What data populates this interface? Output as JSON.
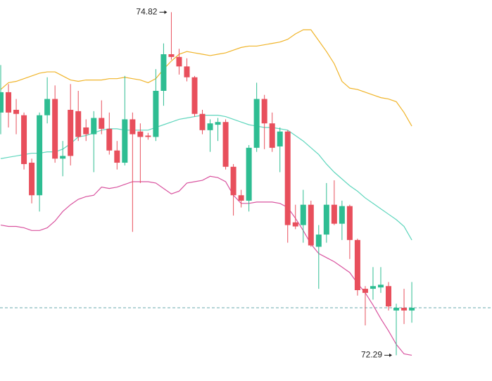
{
  "chart_data": {
    "type": "candlestick",
    "open": [
      74.08,
      74.23,
      74.1,
      74.06,
      73.71,
      73.47,
      74.06,
      74.18,
      73.74,
      74.1,
      74.09,
      73.97,
      73.92,
      74.04,
      73.96,
      73.8,
      73.71,
      74.03,
      73.94,
      73.91,
      73.9,
      74.24,
      74.51,
      74.49,
      74.42,
      74.34,
      74.07,
      73.95,
      73.99,
      74.01,
      73.68,
      73.47,
      73.43,
      73.82,
      74.18,
      74.0,
      73.83,
      73.94,
      73.27,
      73.25,
      73.4,
      73.09,
      73.18,
      73.4,
      73.26,
      73.39,
      73.14,
      72.78,
      72.78,
      72.79,
      72.8,
      72.62,
      72.64,
      72.62
    ],
    "high": [
      74.43,
      74.29,
      74.18,
      74.08,
      73.74,
      74.08,
      74.34,
      74.28,
      73.87,
      74.29,
      74.24,
      74.03,
      74.09,
      74.17,
      74.08,
      73.87,
      74.35,
      74.08,
      74.0,
      73.93,
      74.4,
      74.59,
      74.82,
      74.55,
      74.48,
      74.35,
      74.1,
      74.03,
      74.04,
      74.03,
      73.7,
      73.51,
      73.84,
      74.3,
      74.21,
      74.08,
      73.97,
      73.95,
      73.4,
      73.51,
      73.43,
      73.25,
      73.56,
      73.58,
      73.43,
      73.4,
      73.15,
      72.8,
      72.94,
      72.94,
      72.83,
      72.67,
      72.78,
      72.83
    ],
    "low": [
      73.92,
      73.97,
      73.92,
      73.66,
      73.41,
      73.35,
      74.0,
      73.71,
      73.61,
      73.69,
      73.87,
      73.87,
      73.64,
      73.92,
      73.77,
      73.66,
      73.69,
      73.2,
      73.56,
      73.88,
      73.87,
      74.13,
      74.47,
      74.36,
      74.31,
      74.05,
      73.92,
      73.79,
      73.87,
      73.66,
      73.32,
      73.38,
      73.35,
      73.79,
      73.81,
      73.79,
      73.64,
      73.12,
      73.22,
      73.12,
      73.09,
      72.78,
      73.12,
      73.25,
      73.14,
      73.0,
      72.73,
      72.51,
      72.7,
      72.75,
      72.62,
      72.29,
      72.52,
      72.53
    ],
    "close": [
      74.23,
      74.08,
      74.07,
      73.7,
      73.47,
      74.06,
      74.18,
      73.74,
      73.76,
      73.76,
      73.9,
      73.92,
      74.04,
      73.96,
      73.8,
      73.71,
      74.03,
      73.92,
      73.9,
      73.9,
      74.24,
      74.51,
      74.49,
      74.42,
      74.34,
      74.07,
      73.95,
      74.0,
      74.01,
      73.68,
      73.47,
      73.43,
      73.82,
      74.18,
      74.0,
      73.82,
      73.94,
      73.25,
      73.24,
      73.4,
      73.1,
      73.18,
      73.4,
      73.26,
      73.39,
      73.14,
      72.77,
      72.75,
      72.8,
      72.81,
      72.65,
      72.64,
      72.62,
      72.64
    ],
    "up_color": "#2ebd92",
    "down_color": "#e84f5c",
    "bands": [
      {
        "color": "#f0b429",
        "values": [
          74.25,
          74.3,
          74.31,
          74.33,
          74.35,
          74.37,
          74.38,
          74.38,
          74.35,
          74.32,
          74.31,
          74.32,
          74.32,
          74.32,
          74.33,
          74.33,
          74.34,
          74.33,
          74.32,
          74.3,
          74.33,
          74.4,
          74.46,
          74.51,
          74.53,
          74.52,
          74.51,
          74.5,
          74.51,
          74.52,
          74.54,
          74.56,
          74.57,
          74.57,
          74.58,
          74.59,
          74.6,
          74.62,
          74.66,
          74.69,
          74.69,
          74.61,
          74.53,
          74.44,
          74.31,
          74.26,
          74.25,
          74.23,
          74.21,
          74.19,
          74.18,
          74.16,
          74.08,
          73.98
        ]
      },
      {
        "color": "#5fd6bd",
        "values": [
          73.74,
          73.75,
          73.76,
          73.77,
          73.78,
          73.78,
          73.79,
          73.79,
          73.81,
          73.85,
          73.9,
          73.91,
          73.93,
          73.95,
          73.96,
          73.96,
          73.95,
          73.95,
          73.95,
          73.95,
          73.97,
          73.99,
          74.01,
          74.03,
          74.04,
          74.05,
          74.06,
          74.06,
          74.06,
          74.05,
          74.03,
          74.01,
          73.99,
          73.98,
          73.97,
          73.97,
          73.96,
          73.95,
          73.91,
          73.87,
          73.82,
          73.77,
          73.7,
          73.64,
          73.59,
          73.54,
          73.5,
          73.45,
          73.41,
          73.37,
          73.33,
          73.29,
          73.24,
          73.14
        ]
      },
      {
        "color": "#d9539f",
        "values": [
          73.25,
          73.24,
          73.24,
          73.23,
          73.21,
          73.21,
          73.23,
          73.28,
          73.35,
          73.4,
          73.44,
          73.46,
          73.47,
          73.53,
          73.52,
          73.53,
          73.55,
          73.57,
          73.57,
          73.57,
          73.56,
          73.52,
          73.48,
          73.5,
          73.56,
          73.57,
          73.58,
          73.61,
          73.6,
          73.57,
          73.47,
          73.41,
          73.41,
          73.42,
          73.42,
          73.42,
          73.41,
          73.38,
          73.3,
          73.21,
          73.11,
          73.04,
          73.01,
          72.98,
          72.94,
          72.9,
          72.82,
          72.75,
          72.66,
          72.56,
          72.47,
          72.37,
          72.3,
          72.29
        ]
      }
    ],
    "last_price_color": "#6aa8ad",
    "ylim": [
      72.1,
      74.91
    ]
  }
}
